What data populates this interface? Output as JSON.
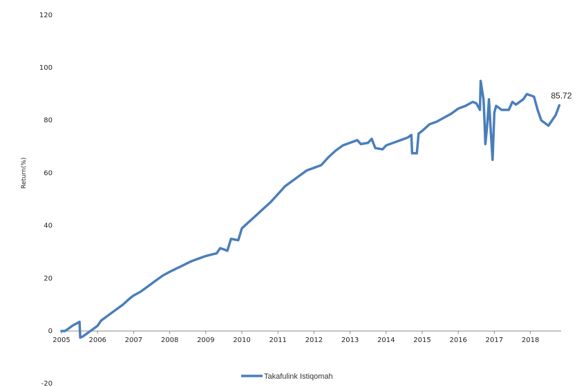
{
  "chart_data": {
    "type": "line",
    "ylabel": "Return(%)",
    "xlabel": "",
    "ylim": [
      -20,
      120
    ],
    "yticks": [
      -20,
      0,
      20,
      40,
      60,
      80,
      100,
      120
    ],
    "xlim": [
      2005,
      2018.85
    ],
    "xticks": [
      "2005",
      "2006",
      "2007",
      "2008",
      "2009",
      "2010",
      "2011",
      "2012",
      "2013",
      "2014",
      "2015",
      "2016",
      "2017",
      "2018"
    ],
    "grid": false,
    "legend": "bottom",
    "end_label": "85.72",
    "series": [
      {
        "name": "Takafulink Istiqomah",
        "color": "#4a7ebb",
        "x": [
          2005.0,
          2005.1,
          2005.3,
          2005.5,
          2005.52,
          2005.6,
          2005.8,
          2006.0,
          2006.1,
          2006.3,
          2006.5,
          2006.7,
          2006.9,
          2007.0,
          2007.2,
          2007.4,
          2007.6,
          2007.8,
          2008.0,
          2008.3,
          2008.6,
          2008.9,
          2009.0,
          2009.3,
          2009.4,
          2009.6,
          2009.7,
          2009.9,
          2010.0,
          2010.2,
          2010.4,
          2010.6,
          2010.8,
          2011.0,
          2011.2,
          2011.5,
          2011.8,
          2012.0,
          2012.2,
          2012.4,
          2012.6,
          2012.8,
          2013.0,
          2013.2,
          2013.3,
          2013.5,
          2013.6,
          2013.7,
          2013.9,
          2014.0,
          2014.2,
          2014.4,
          2014.6,
          2014.7,
          2014.72,
          2014.85,
          2014.9,
          2015.0,
          2015.2,
          2015.4,
          2015.6,
          2015.8,
          2016.0,
          2016.2,
          2016.4,
          2016.5,
          2016.6,
          2016.62,
          2016.7,
          2016.72,
          2016.75,
          2016.8,
          2016.85,
          2016.9,
          2016.95,
          2017.0,
          2017.05,
          2017.1,
          2017.2,
          2017.4,
          2017.5,
          2017.6,
          2017.8,
          2017.9,
          2018.0,
          2018.1,
          2018.2,
          2018.3,
          2018.4,
          2018.5,
          2018.6,
          2018.7,
          2018.8
        ],
        "values": [
          0,
          0,
          2,
          3.5,
          -2.5,
          -2,
          0,
          2,
          4,
          6,
          8,
          10,
          12.5,
          13.5,
          15,
          17,
          19,
          21,
          22.5,
          24.5,
          26.5,
          28,
          28.5,
          29.5,
          31.5,
          30.5,
          35,
          34.5,
          39,
          41.5,
          44,
          46.5,
          49,
          52,
          55,
          58,
          61,
          62,
          63,
          66,
          68.5,
          70.5,
          71.5,
          72.5,
          71,
          71.5,
          73,
          69.5,
          69,
          70.5,
          71.5,
          72.5,
          73.5,
          74.5,
          67.5,
          67.5,
          75,
          76,
          78.5,
          79.5,
          81,
          82.5,
          84.5,
          85.5,
          87,
          86.5,
          84,
          95,
          88,
          82,
          71,
          78,
          88,
          76,
          65,
          83,
          85.5,
          85,
          84,
          84,
          87,
          86,
          88,
          90,
          89.5,
          89,
          84,
          80,
          79,
          78,
          80,
          82,
          85.72
        ]
      }
    ]
  }
}
